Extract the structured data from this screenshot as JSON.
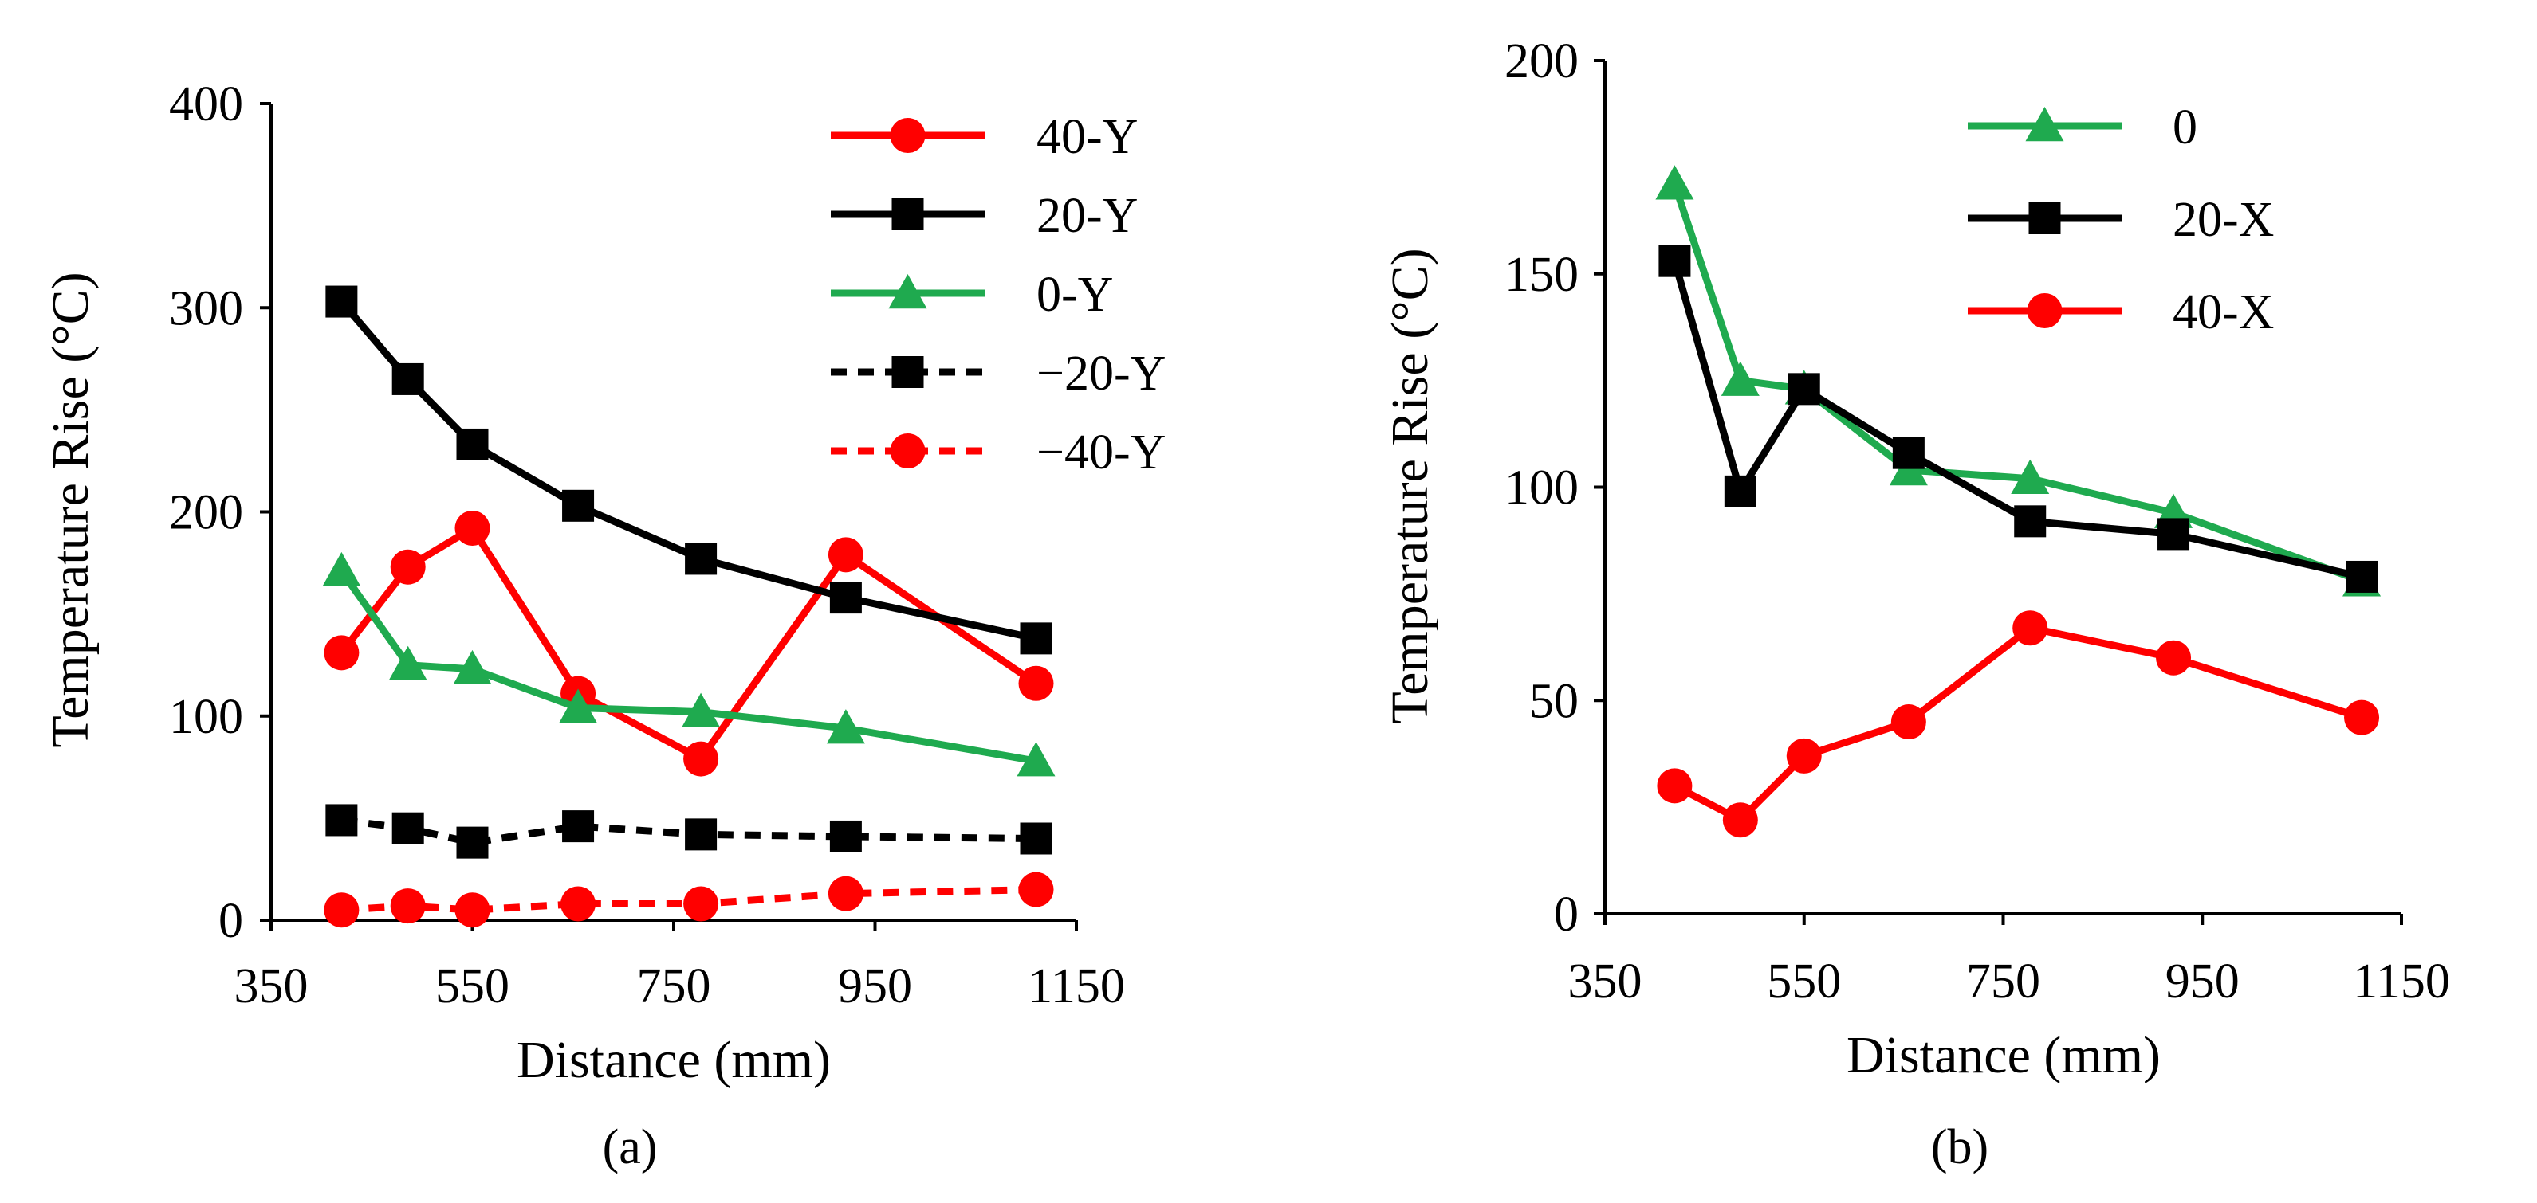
{
  "chart_data": [
    {
      "type": "line",
      "panel_label": "(a)",
      "title": "",
      "xlabel": "Distance (mm)",
      "ylabel": "Temperature Rise (°C)",
      "xlim": [
        350,
        1150
      ],
      "ylim": [
        0,
        400
      ],
      "xticks": [
        350,
        550,
        750,
        950,
        1150
      ],
      "yticks": [
        0,
        100,
        200,
        300,
        400
      ],
      "grid": false,
      "legend_position": "top-right",
      "x": [
        420,
        486,
        550,
        655,
        777,
        921,
        1110
      ],
      "series": [
        {
          "name": "40-Y",
          "color": "#ff0000",
          "marker": "circle",
          "dash": false,
          "values": [
            131,
            173,
            192,
            111,
            79,
            179,
            116
          ]
        },
        {
          "name": "20-Y",
          "color": "#000000",
          "marker": "square",
          "dash": false,
          "values": [
            303,
            265,
            233,
            203,
            177,
            158,
            138
          ]
        },
        {
          "name": "0-Y",
          "color": "#1faa4f",
          "marker": "triangle",
          "dash": false,
          "values": [
            171,
            125,
            123,
            104,
            102,
            94,
            78
          ]
        },
        {
          "name": "−20-Y",
          "color": "#000000",
          "marker": "square",
          "dash": true,
          "values": [
            49,
            45,
            38,
            46,
            42,
            41,
            40
          ]
        },
        {
          "name": "−40-Y",
          "color": "#ff0000",
          "marker": "circle",
          "dash": true,
          "values": [
            5,
            7,
            5,
            8,
            8,
            13,
            15
          ]
        }
      ]
    },
    {
      "type": "line",
      "panel_label": "(b)",
      "title": "",
      "xlabel": "Distance (mm)",
      "ylabel": "Temperature Rise (°C)",
      "xlim": [
        350,
        1150
      ],
      "ylim": [
        0,
        200
      ],
      "xticks": [
        350,
        550,
        750,
        950,
        1150
      ],
      "yticks": [
        0,
        50,
        100,
        150,
        200
      ],
      "grid": false,
      "legend_position": "top-right",
      "x": [
        420,
        486,
        550,
        655,
        777,
        921,
        1110
      ],
      "series": [
        {
          "name": "0",
          "color": "#1faa4f",
          "marker": "triangle",
          "dash": false,
          "values": [
            171,
            125,
            123,
            104,
            102,
            94,
            78
          ]
        },
        {
          "name": "20-X",
          "color": "#000000",
          "marker": "square",
          "dash": false,
          "values": [
            153,
            99,
            123,
            108,
            92,
            89,
            79
          ]
        },
        {
          "name": "40-X",
          "color": "#ff0000",
          "marker": "circle",
          "dash": false,
          "values": [
            30,
            22,
            37,
            45,
            67,
            60,
            46
          ]
        }
      ]
    }
  ]
}
